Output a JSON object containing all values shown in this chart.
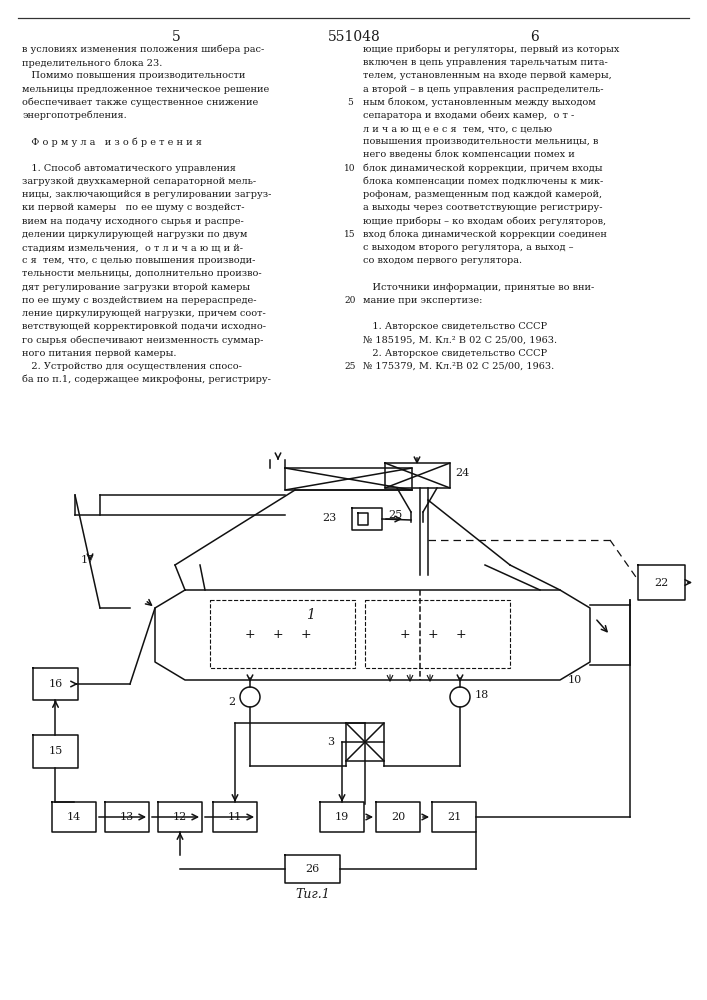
{
  "patent_number": "551048",
  "page_left": "5",
  "page_right": "6",
  "background_color": "#ffffff",
  "text_color": "#1a1a1a",
  "col1_text": [
    "в условиях изменения положения шибера рас-",
    "пределительного блока 23.",
    "   Помимо повышения производительности",
    "мельницы предложенное техническое решение",
    "обеспечивает также существенное снижение",
    "энергопотребления.",
    "",
    "   Ф о р м у л а   и з о б р е т е н и я",
    "",
    "   1. Способ автоматического управления",
    "загрузкой двухкамерной сепараторной мель-",
    "ницы, заключающийся в регулировании загруз-",
    "ки первой камеры   по ее шуму с воздейст-",
    "вием на подачу исходного сырья и распре-",
    "делении циркулирующей нагрузки по двум",
    "стадиям измельчения,  о т л и ч а ю щ и й-",
    "с я  тем, что, с целью повышения производи-",
    "тельности мельницы, дополнительно произво-",
    "дят регулирование загрузки второй камеры",
    "по ее шуму с воздействием на перераспреде-",
    "ление циркулирующей нагрузки, причем соот-",
    "ветствующей корректировкой подачи исходно-",
    "го сырья обеспечивают неизменность суммар-",
    "ного питания первой камеры.",
    "   2. Устройство для осуществления спосо-",
    "ба по п.1, содержащее микрофоны, регистриру-"
  ],
  "col2_text": [
    "ющие приборы и регуляторы, первый из которых",
    "включен в цепь управления тарельчатым пита-",
    "телем, установленным на входе первой камеры,",
    "а второй – в цепь управления распределитель-",
    "ным блоком, установленным между выходом",
    "сепаратора и входами обеих камер,  о т -",
    "л и ч а ю щ е е с я  тем, что, с целью",
    "повышения производительности мельницы, в",
    "него введены блок компенсации помех и",
    "блок динамической коррекции, причем входы",
    "блока компенсации помех подключены к мик-",
    "рофонам, размещенным под каждой камерой,",
    "а выходы через соответствующие регистриру-",
    "ющие приборы – ко входам обоих регуляторов,",
    "вход блока динамической коррекции соединен",
    "с выходом второго регулятора, а выход –",
    "со входом первого регулятора.",
    "",
    "   Источники информации, принятые во вни-",
    "мание при экспертизе:",
    "",
    "   1. Авторское свидетельство СССР",
    "№ 185195, М. Кл.² В 02 С 25/00, 1963.",
    "   2. Авторское свидетельство СССР",
    "№ 175379, М. Кл.²В 02 С 25/00, 1963."
  ],
  "fig_label": "Τиг.1"
}
